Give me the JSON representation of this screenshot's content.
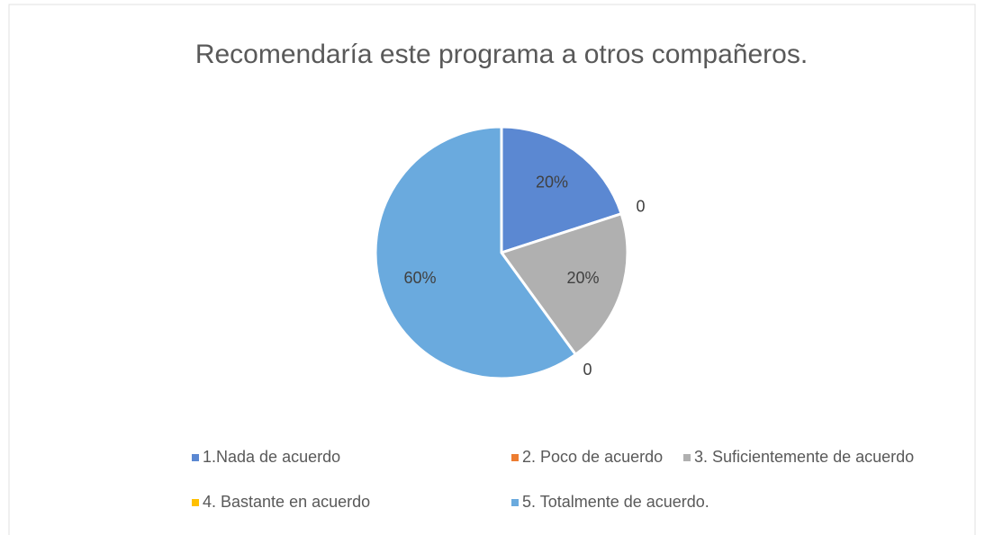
{
  "chart_data": {
    "type": "pie",
    "title": "Recomendaría este programa a otros compañeros.",
    "categories": [
      "1.Nada de acuerdo",
      "2. Poco de acuerdo",
      "3. Suficientemente de acuerdo",
      "4. Bastante en acuerdo",
      "5. Totalmente de acuerdo."
    ],
    "values": [
      20,
      0,
      20,
      0,
      60
    ],
    "value_labels": [
      "20%",
      "0",
      "20%",
      "0",
      "60%"
    ],
    "colors": [
      "#5b88d2",
      "#ed7d31",
      "#b0b0b0",
      "#ffc000",
      "#6aaade"
    ],
    "legend": "bottom"
  }
}
